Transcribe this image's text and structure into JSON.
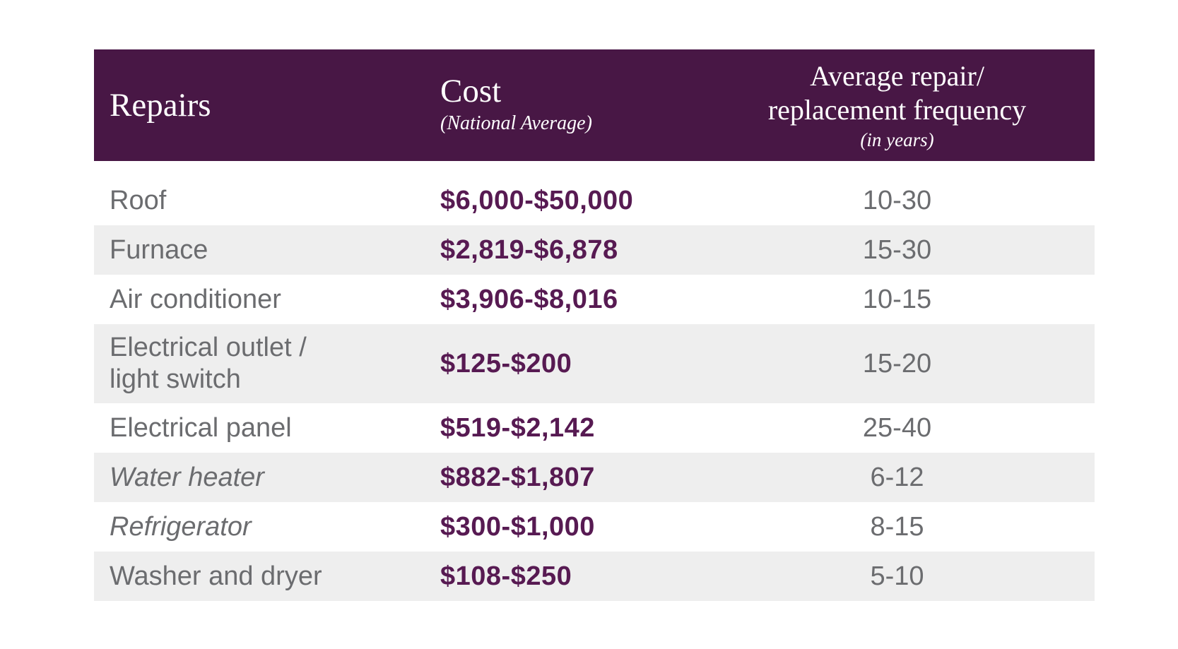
{
  "table": {
    "header": {
      "repairs_label": "Repairs",
      "cost_title": "Cost",
      "cost_subtitle": "(National Average)",
      "frequency_line1": "Average repair/",
      "frequency_line2": "replacement frequency",
      "frequency_subtitle": "(in years)"
    },
    "rows": [
      {
        "repair": "Roof",
        "cost": "$6,000-$50,000",
        "frequency": "10-30",
        "italic": false
      },
      {
        "repair": "Furnace",
        "cost": "$2,819-$6,878",
        "frequency": "15-30",
        "italic": false
      },
      {
        "repair": "Air conditioner",
        "cost": "$3,906-$8,016",
        "frequency": "10-15",
        "italic": false
      },
      {
        "repair": "Electrical outlet /\nlight switch",
        "cost": "$125-$200",
        "frequency": "15-20",
        "italic": false
      },
      {
        "repair": "Electrical panel",
        "cost": "$519-$2,142",
        "frequency": "25-40",
        "italic": false
      },
      {
        "repair": "Water heater",
        "cost": "$882-$1,807",
        "frequency": "6-12",
        "italic": true
      },
      {
        "repair": "Refrigerator",
        "cost": "$300-$1,000",
        "frequency": "8-15",
        "italic": true
      },
      {
        "repair": "Washer and dryer",
        "cost": "$108-$250",
        "frequency": "5-10",
        "italic": false
      }
    ],
    "colors": {
      "header_bg": "#481745",
      "header_text": "#ffffff",
      "cost_text": "#571a52",
      "row_alt_bg": "#eeeeee",
      "body_text": "#6b6c6f"
    }
  }
}
